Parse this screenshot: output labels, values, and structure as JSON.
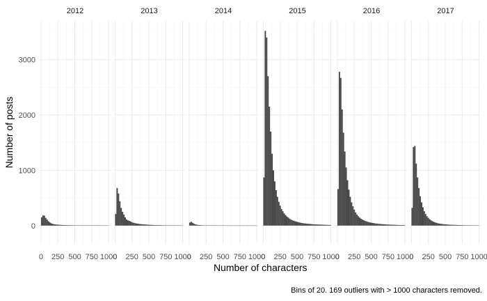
{
  "chart_data": {
    "type": "bar",
    "subtype": "faceted-histogram",
    "xlabel": "Number of characters",
    "ylabel": "Number of posts",
    "caption": "Bins of 20.  169  outliers with > 1000 characters removed.",
    "bin_width": 20,
    "xlim": [
      -20,
      1030
    ],
    "ylim": [
      -330,
      3700
    ],
    "x_ticks": [
      0,
      250,
      500,
      750,
      1000
    ],
    "x_tick_labels": [
      "0",
      "250",
      "500",
      "750",
      "1000"
    ],
    "y_ticks": [
      0,
      1000,
      2000,
      3000
    ],
    "y_tick_labels": [
      "0",
      "1000",
      "2000",
      "3000"
    ],
    "grid": true,
    "bar_color": "#474747",
    "facets": [
      {
        "name": "2012",
        "values": [
          150,
          185,
          180,
          140,
          110,
          80,
          58,
          42,
          32,
          26,
          22,
          19,
          17,
          15,
          13,
          12,
          11,
          10,
          9,
          9,
          8,
          8,
          7,
          7,
          6,
          6,
          5,
          5,
          5,
          5,
          4,
          4,
          4,
          4,
          4,
          3,
          3,
          3,
          3,
          3,
          3,
          3,
          2,
          2,
          2,
          2,
          2,
          2,
          2,
          2
        ]
      },
      {
        "name": "2013",
        "values": [
          210,
          680,
          580,
          440,
          320,
          250,
          200,
          150,
          110,
          95,
          85,
          75,
          60,
          52,
          45,
          40,
          36,
          32,
          28,
          26,
          24,
          22,
          20,
          18,
          16,
          14,
          13,
          12,
          11,
          10,
          9,
          9,
          8,
          8,
          7,
          7,
          6,
          6,
          6,
          5,
          5,
          5,
          5,
          4,
          4,
          4,
          4,
          4,
          3,
          3
        ]
      },
      {
        "name": "2014",
        "values": [
          55,
          70,
          52,
          35,
          24,
          18,
          13,
          10,
          8,
          7,
          6,
          5,
          5,
          4,
          4,
          3,
          3,
          3,
          3,
          2,
          2,
          2,
          2,
          2,
          2,
          2,
          2,
          1,
          1,
          1,
          1,
          1,
          1,
          1,
          1,
          1,
          1,
          1,
          1,
          1,
          1,
          1,
          1,
          1,
          1,
          1,
          1,
          1,
          1,
          1
        ]
      },
      {
        "name": "2015",
        "values": [
          870,
          3520,
          3400,
          2700,
          2150,
          1700,
          1300,
          1000,
          800,
          640,
          520,
          430,
          360,
          300,
          260,
          220,
          190,
          165,
          145,
          125,
          110,
          98,
          88,
          80,
          72,
          65,
          58,
          52,
          47,
          43,
          40,
          37,
          34,
          32,
          30,
          28,
          26,
          24,
          22,
          21,
          20,
          19,
          18,
          17,
          16,
          15,
          14,
          13,
          12,
          12
        ]
      },
      {
        "name": "2016",
        "values": [
          660,
          2780,
          2670,
          2100,
          1680,
          1340,
          1050,
          820,
          650,
          520,
          420,
          350,
          290,
          240,
          200,
          170,
          145,
          125,
          110,
          97,
          86,
          77,
          69,
          62,
          56,
          51,
          46,
          42,
          38,
          35,
          32,
          30,
          28,
          26,
          24,
          22,
          20,
          19,
          18,
          17,
          16,
          15,
          14,
          13,
          12,
          11,
          11,
          10,
          10,
          9
        ]
      },
      {
        "name": "2017",
        "values": [
          320,
          1420,
          1440,
          1120,
          870,
          680,
          530,
          420,
          330,
          260,
          210,
          170,
          140,
          115,
          95,
          80,
          68,
          58,
          50,
          43,
          38,
          34,
          30,
          27,
          24,
          22,
          20,
          18,
          16,
          15,
          14,
          13,
          12,
          11,
          10,
          9,
          9,
          8,
          8,
          7,
          7,
          6,
          6,
          6,
          5,
          5,
          5,
          5,
          4,
          4
        ]
      }
    ]
  }
}
